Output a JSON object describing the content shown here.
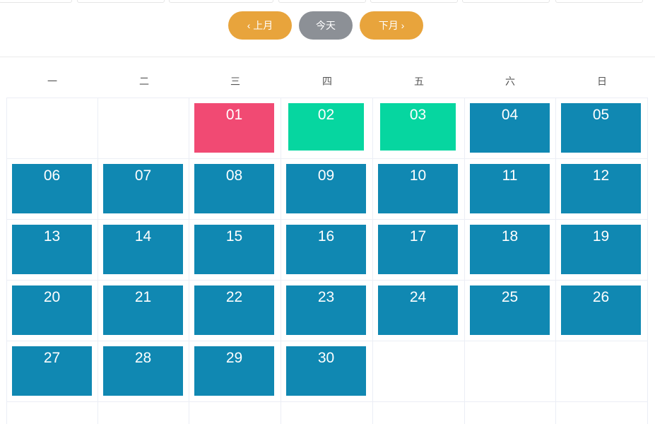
{
  "nav": {
    "prev_label": "上月",
    "today_label": "今天",
    "next_label": "下月"
  },
  "weekdays": [
    "一",
    "二",
    "三",
    "四",
    "五",
    "六",
    "日"
  ],
  "colors": {
    "accent_orange": "#e8a43c",
    "gray_button": "#8c9096",
    "day_blue": "#1088b2",
    "day_red": "#f14a73",
    "day_green": "#06d6a0"
  },
  "days": [
    {
      "label": "01",
      "status": "red"
    },
    {
      "label": "02",
      "status": "green"
    },
    {
      "label": "03",
      "status": "green"
    },
    {
      "label": "04",
      "status": "blue"
    },
    {
      "label": "05",
      "status": "blue"
    },
    {
      "label": "06",
      "status": "blue"
    },
    {
      "label": "07",
      "status": "blue"
    },
    {
      "label": "08",
      "status": "blue"
    },
    {
      "label": "09",
      "status": "blue"
    },
    {
      "label": "10",
      "status": "blue"
    },
    {
      "label": "11",
      "status": "blue"
    },
    {
      "label": "12",
      "status": "blue"
    },
    {
      "label": "13",
      "status": "blue"
    },
    {
      "label": "14",
      "status": "blue"
    },
    {
      "label": "15",
      "status": "blue"
    },
    {
      "label": "16",
      "status": "blue"
    },
    {
      "label": "17",
      "status": "blue"
    },
    {
      "label": "18",
      "status": "blue"
    },
    {
      "label": "19",
      "status": "blue"
    },
    {
      "label": "20",
      "status": "blue"
    },
    {
      "label": "21",
      "status": "blue"
    },
    {
      "label": "22",
      "status": "blue"
    },
    {
      "label": "23",
      "status": "blue"
    },
    {
      "label": "24",
      "status": "blue"
    },
    {
      "label": "25",
      "status": "blue"
    },
    {
      "label": "26",
      "status": "blue"
    },
    {
      "label": "27",
      "status": "blue"
    },
    {
      "label": "28",
      "status": "blue"
    },
    {
      "label": "29",
      "status": "blue"
    },
    {
      "label": "30",
      "status": "blue"
    }
  ]
}
